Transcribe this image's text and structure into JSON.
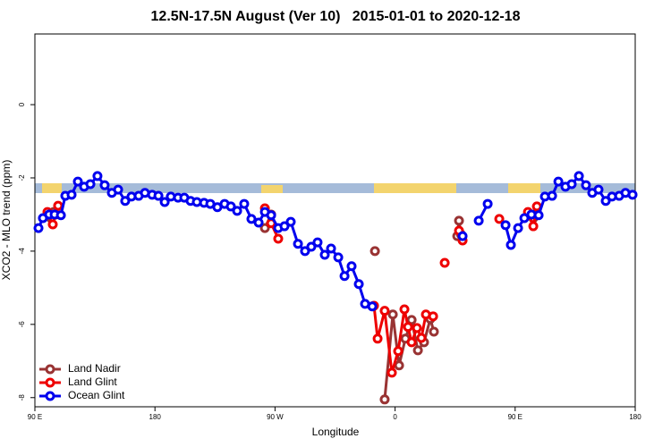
{
  "chart_data": {
    "type": "line",
    "title": "12.5N-17.5N August (Ver 10)   2015-01-01 to 2020-12-18",
    "x_label": "Longitude",
    "y_label": "XCO2 - MLO trend (ppm)",
    "xlim": [
      90,
      540
    ],
    "xticks": [
      {
        "value": 90,
        "label": "90 E"
      },
      {
        "value": 180,
        "label": "180"
      },
      {
        "value": 270,
        "label": "90 W"
      },
      {
        "value": 360,
        "label": "0"
      },
      {
        "value": 450,
        "label": "90 E"
      },
      {
        "value": 540,
        "label": "180"
      }
    ],
    "ylim": [
      -8.25,
      1.93
    ],
    "yticks": [
      0,
      -2,
      -4,
      -6,
      -8
    ],
    "legend": "bottom-left",
    "series": [
      {
        "name": "Land Nadir",
        "color": "#993333",
        "x": [
          102.1,
          104.1,
          null,
          262.4,
          267.1,
          null,
          344.9,
          null,
          352.2,
          358.3,
          363.0,
          367.7,
          372.4,
          377.1,
          381.7,
          386.4,
          389.1,
          null,
          406.6,
          407.9,
          409.3,
          null,
          463.6,
          466.3
        ],
        "values": [
          -3.1,
          -2.93,
          null,
          -3.37,
          -3.0,
          null,
          -4.0,
          null,
          -8.05,
          -5.73,
          -7.12,
          -6.39,
          -5.88,
          -6.71,
          -6.49,
          -5.85,
          -6.2,
          null,
          -3.59,
          -3.17,
          -3.54,
          null,
          -3.1,
          -2.95
        ]
      },
      {
        "name": "Land Glint",
        "color": "#ee0000",
        "x": [
          99.4,
          103.4,
          105.4,
          107.4,
          null,
          262.4,
          267.1,
          272.4,
          null,
          344.2,
          346.9,
          352.2,
          357.6,
          362.3,
          367.0,
          369.7,
          372.4,
          376.4,
          379.7,
          383.1,
          388.5,
          null,
          397.2,
          null,
          407.9,
          410.6,
          null,
          438.1,
          null,
          459.6,
          463.6,
          466.3
        ],
        "values": [
          -2.93,
          -3.27,
          -3.0,
          -2.76,
          null,
          -2.83,
          -3.24,
          -3.66,
          null,
          -5.49,
          -6.39,
          -5.63,
          -7.32,
          -6.73,
          -5.59,
          -6.07,
          -6.49,
          -6.1,
          -6.37,
          -5.73,
          -5.78,
          null,
          -4.32,
          null,
          -3.44,
          -3.71,
          null,
          -3.12,
          null,
          -2.93,
          -3.32,
          -2.78
        ]
      },
      {
        "name": "Ocean Glint",
        "color": "#0000ee",
        "x": [
          92.7,
          96.0,
          100.7,
          104.8,
          109.5,
          112.8,
          117.5,
          122.2,
          126.9,
          131.6,
          136.9,
          142.3,
          147.7,
          152.4,
          157.7,
          162.4,
          167.8,
          172.5,
          177.9,
          182.6,
          187.3,
          191.9,
          197.3,
          202.0,
          206.7,
          211.4,
          216.8,
          221.5,
          226.8,
          232.2,
          236.9,
          241.6,
          246.9,
          252.3,
          257.7,
          262.4,
          267.1,
          272.4,
          277.1,
          281.8,
          287.2,
          292.5,
          297.2,
          301.9,
          307.3,
          312.0,
          317.4,
          322.1,
          327.4,
          332.8,
          337.5,
          342.9,
          null,
          410.6,
          null,
          422.7,
          429.4,
          null,
          442.8,
          446.8,
          452.2,
          456.9,
          462.2,
          467.6,
          472.3,
          477.7,
          482.4,
          487.7,
          492.4,
          497.8,
          503.1,
          507.8,
          512.5,
          517.9,
          522.6,
          528.0,
          532.7,
          538.0
        ],
        "values": [
          -3.37,
          -3.1,
          -3.0,
          -3.0,
          -3.02,
          -2.49,
          -2.46,
          -2.1,
          -2.24,
          -2.17,
          -1.95,
          -2.2,
          -2.41,
          -2.32,
          -2.63,
          -2.51,
          -2.49,
          -2.41,
          -2.46,
          -2.49,
          -2.66,
          -2.51,
          -2.54,
          -2.54,
          -2.63,
          -2.66,
          -2.68,
          -2.71,
          -2.8,
          -2.71,
          -2.78,
          -2.9,
          -2.71,
          -3.12,
          -3.22,
          -2.93,
          -3.02,
          -3.37,
          -3.32,
          -3.2,
          -3.8,
          -4.0,
          -3.88,
          -3.76,
          -4.1,
          -3.93,
          -4.17,
          -4.68,
          -4.41,
          -4.9,
          -5.44,
          -5.51,
          null,
          -3.59,
          null,
          -3.17,
          -2.71,
          null,
          -3.29,
          -3.83,
          -3.37,
          -3.1,
          -3.0,
          -3.02,
          -2.51,
          -2.49,
          -2.1,
          -2.24,
          -2.17,
          -1.95,
          -2.2,
          -2.41,
          -2.32,
          -2.63,
          -2.51,
          -2.49,
          -2.41,
          -2.46
        ]
      }
    ]
  }
}
